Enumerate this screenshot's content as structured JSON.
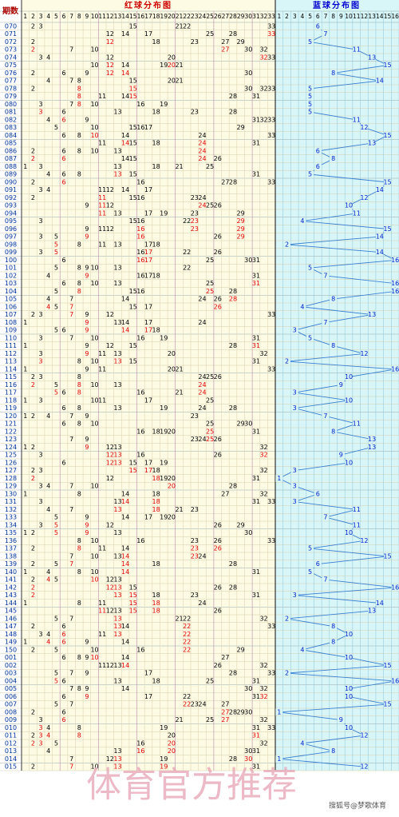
{
  "header": {
    "issue_label": "期数",
    "red_title": "红球分布图",
    "blue_title": "蓝球分布图",
    "red_columns": [
      1,
      2,
      3,
      4,
      5,
      6,
      7,
      8,
      9,
      10,
      11,
      12,
      13,
      14,
      15,
      16,
      17,
      18,
      19,
      20,
      21,
      22,
      23,
      24,
      25,
      26,
      27,
      28,
      29,
      30,
      31,
      32,
      33
    ],
    "blue_columns": [
      1,
      2,
      3,
      4,
      5,
      6,
      7,
      8,
      9,
      10,
      11,
      12,
      13,
      14,
      15,
      16
    ]
  },
  "rows": [
    {
      "issue": "070",
      "red": [
        2,
        3,
        15,
        21,
        22,
        33
      ],
      "blue": 6
    },
    {
      "issue": "071",
      "red": [
        12,
        14,
        17,
        25,
        28,
        33
      ],
      "blue": 7
    },
    {
      "issue": "072",
      "red": [
        2,
        12,
        18,
        23,
        27,
        29
      ],
      "blue": 5
    },
    {
      "issue": "073",
      "red": [
        2,
        7,
        10,
        27,
        30,
        32
      ],
      "blue": 11
    },
    {
      "issue": "074",
      "red": [
        3,
        4,
        12,
        20,
        32,
        33
      ],
      "blue": 13
    },
    {
      "issue": "075",
      "red": [
        10,
        12,
        14,
        19,
        20,
        21
      ],
      "blue": 15
    },
    {
      "issue": "076",
      "red": [
        2,
        6,
        9,
        12,
        14,
        30
      ],
      "blue": 8
    },
    {
      "issue": "077",
      "red": [
        4,
        7,
        8,
        15,
        20,
        21
      ],
      "blue": 14
    },
    {
      "issue": "078",
      "red": [
        2,
        8,
        15,
        30,
        32,
        33
      ],
      "blue": 5
    },
    {
      "issue": "079",
      "red": [
        8,
        11,
        14,
        15,
        28,
        31
      ],
      "blue": 5
    },
    {
      "issue": "080",
      "red": [
        3,
        7,
        8,
        10,
        16,
        19
      ],
      "blue": 5
    },
    {
      "issue": "081",
      "red": [
        3,
        6,
        13,
        18,
        23,
        28
      ],
      "blue": 5
    },
    {
      "issue": "082",
      "red": [
        4,
        6,
        9,
        31,
        32,
        33
      ],
      "blue": 11
    },
    {
      "issue": "083",
      "red": [
        5,
        10,
        15,
        16,
        17,
        29
      ],
      "blue": 12
    },
    {
      "issue": "084",
      "red": [
        6,
        8,
        10,
        14,
        24,
        33
      ],
      "blue": 15
    },
    {
      "issue": "085",
      "red": [
        11,
        14,
        15,
        18,
        24,
        31
      ],
      "blue": 13
    },
    {
      "issue": "086",
      "red": [
        2,
        6,
        8,
        10,
        13,
        24
      ],
      "blue": 6
    },
    {
      "issue": "087",
      "red": [
        2,
        6,
        14,
        15,
        24,
        26
      ],
      "blue": 8
    },
    {
      "issue": "088",
      "red": [
        1,
        3,
        13,
        18,
        21,
        25
      ],
      "blue": 6
    },
    {
      "issue": "089",
      "red": [
        4,
        6,
        8,
        13,
        15,
        31
      ],
      "blue": 5
    },
    {
      "issue": "090",
      "red": [
        2,
        6,
        16,
        27,
        28,
        33
      ],
      "blue": 15
    },
    {
      "issue": "091",
      "red": [
        3,
        4,
        11,
        12,
        14,
        17
      ],
      "blue": 14
    },
    {
      "issue": "092",
      "red": [
        2,
        11,
        15,
        16,
        23,
        24
      ],
      "blue": 12
    },
    {
      "issue": "093",
      "red": [
        9,
        11,
        12,
        24,
        25,
        26
      ],
      "blue": 10
    },
    {
      "issue": "094",
      "red": [
        11,
        13,
        17,
        19,
        23,
        29
      ],
      "blue": 11
    },
    {
      "issue": "095",
      "red": [
        3,
        15,
        16,
        22,
        23,
        29
      ],
      "blue": 4
    },
    {
      "issue": "096",
      "red": [
        9,
        11,
        12,
        16,
        23,
        29
      ],
      "blue": 15
    },
    {
      "issue": "097",
      "red": [
        3,
        5,
        9,
        16,
        26,
        29
      ],
      "blue": 14
    },
    {
      "issue": "098",
      "red": [
        5,
        8,
        11,
        13,
        17,
        18
      ],
      "blue": 2
    },
    {
      "issue": "099",
      "red": [
        3,
        5,
        16,
        17,
        22,
        26
      ],
      "blue": 14
    },
    {
      "issue": "100",
      "red": [
        6,
        16,
        17,
        25,
        30,
        31
      ],
      "blue": 16
    },
    {
      "issue": "101",
      "red": [
        5,
        8,
        9,
        10,
        13,
        22
      ],
      "blue": 5
    },
    {
      "issue": "102",
      "red": [
        4,
        9,
        16,
        17,
        18,
        31
      ],
      "blue": 7
    },
    {
      "issue": "103",
      "red": [
        6,
        8,
        10,
        13,
        25,
        31
      ],
      "blue": 16
    },
    {
      "issue": "104",
      "red": [
        5,
        8,
        15,
        16,
        25,
        28
      ],
      "blue": 16
    },
    {
      "issue": "105",
      "red": [
        4,
        7,
        14,
        24,
        26,
        28
      ],
      "blue": 8
    },
    {
      "issue": "106",
      "red": [
        4,
        5,
        7,
        15,
        17,
        26
      ],
      "blue": 4
    },
    {
      "issue": "107",
      "red": [
        2,
        3,
        7,
        9,
        12,
        33
      ],
      "blue": 13
    },
    {
      "issue": "108",
      "red": [
        1,
        9,
        13,
        14,
        17,
        24
      ],
      "blue": 7
    },
    {
      "issue": "109",
      "red": [
        5,
        6,
        9,
        14,
        17,
        18
      ],
      "blue": 3
    },
    {
      "issue": "110",
      "red": [
        3,
        7,
        10,
        16,
        19,
        31
      ],
      "blue": 5
    },
    {
      "issue": "111",
      "red": [
        1,
        9,
        12,
        15,
        28,
        31
      ],
      "blue": 8
    },
    {
      "issue": "112",
      "red": [
        3,
        9,
        11,
        13,
        20,
        32
      ],
      "blue": 12
    },
    {
      "issue": "113",
      "red": [
        3,
        8,
        10,
        13,
        15,
        31
      ],
      "blue": 2
    },
    {
      "issue": "114",
      "red": [
        1,
        9,
        11,
        20,
        21,
        33
      ],
      "blue": 16
    },
    {
      "issue": "115",
      "red": [
        2,
        3,
        8,
        24,
        25,
        26
      ],
      "blue": 10
    },
    {
      "issue": "116",
      "red": [
        2,
        5,
        8,
        10,
        13,
        24
      ],
      "blue": 9
    },
    {
      "issue": "117",
      "red": [
        5,
        6,
        8,
        16,
        21,
        24
      ],
      "blue": 3
    },
    {
      "issue": "118",
      "red": [
        1,
        3,
        10,
        11,
        17,
        25
      ],
      "blue": 10
    },
    {
      "issue": "119",
      "red": [
        6,
        8,
        13,
        19,
        24,
        28
      ],
      "blue": 3
    },
    {
      "issue": "120",
      "red": [
        1,
        2,
        4,
        7,
        9,
        23
      ],
      "blue": 7
    },
    {
      "issue": "121",
      "red": [
        6,
        8,
        10,
        25,
        29,
        30
      ],
      "blue": 11
    },
    {
      "issue": "122",
      "red": [
        16,
        18,
        19,
        20,
        25,
        31
      ],
      "blue": 8
    },
    {
      "issue": "123",
      "red": [
        7,
        9,
        23,
        24,
        25,
        26
      ],
      "blue": 13
    },
    {
      "issue": "124",
      "red": [
        1,
        2,
        9,
        12,
        13,
        32
      ],
      "blue": 13
    },
    {
      "issue": "125",
      "red": [
        3,
        12,
        13,
        16,
        26,
        32
      ],
      "blue": 9
    },
    {
      "issue": "126",
      "red": [
        6,
        12,
        13,
        15,
        17,
        19
      ],
      "blue": 10
    },
    {
      "issue": "127",
      "red": [
        2,
        3,
        15,
        17,
        18,
        32
      ],
      "blue": 3
    },
    {
      "issue": "128",
      "red": [
        2,
        12,
        18,
        19,
        20,
        31
      ],
      "blue": 1
    },
    {
      "issue": "129",
      "red": [
        3,
        4,
        7,
        10,
        20,
        28
      ],
      "blue": 3
    },
    {
      "issue": "130",
      "red": [
        1,
        8,
        14,
        18,
        27,
        32
      ],
      "blue": 6
    },
    {
      "issue": "131",
      "red": [
        3,
        13,
        14,
        18,
        31,
        33
      ],
      "blue": 3
    },
    {
      "issue": "132",
      "red": [
        4,
        7,
        13,
        18,
        21,
        23
      ],
      "blue": 11
    },
    {
      "issue": "133",
      "red": [
        5,
        9,
        14,
        17,
        19,
        20
      ],
      "blue": 7
    },
    {
      "issue": "134",
      "red": [
        3,
        5,
        9,
        12,
        26,
        29
      ],
      "blue": 11
    },
    {
      "issue": "135",
      "red": [
        1,
        2,
        5,
        9,
        13,
        30
      ],
      "blue": 10
    },
    {
      "issue": "136",
      "red": [
        8,
        10,
        16,
        23,
        26,
        33
      ],
      "blue": 12
    },
    {
      "issue": "137",
      "red": [
        2,
        8,
        11,
        14,
        23,
        26
      ],
      "blue": 5
    },
    {
      "issue": "138",
      "red": [
        7,
        10,
        13,
        14,
        23,
        24
      ],
      "blue": 15
    },
    {
      "issue": "139",
      "red": [
        2,
        5,
        7,
        14,
        18,
        28
      ],
      "blue": 6
    },
    {
      "issue": "140",
      "red": [
        1,
        4,
        8,
        10,
        14,
        31
      ],
      "blue": 5
    },
    {
      "issue": "141",
      "red": [
        2,
        4,
        5,
        10,
        12,
        13
      ],
      "blue": 7
    },
    {
      "issue": "142",
      "red": [
        2,
        12,
        13,
        15,
        26,
        28
      ],
      "blue": 16
    },
    {
      "issue": "143",
      "red": [
        2,
        13,
        15,
        18,
        23,
        31
      ],
      "blue": 3
    },
    {
      "issue": "144",
      "red": [
        1,
        8,
        11,
        15,
        18,
        24
      ],
      "blue": 14
    },
    {
      "issue": "145",
      "red": [
        11,
        12,
        13,
        15,
        18,
        26
      ],
      "blue": 13
    },
    {
      "issue": "146",
      "red": [
        5,
        7,
        13,
        21,
        22,
        32
      ],
      "blue": 2
    },
    {
      "issue": "147",
      "red": [
        2,
        6,
        13,
        14,
        22,
        33
      ],
      "blue": 8
    },
    {
      "issue": "148",
      "red": [
        3,
        4,
        6,
        11,
        13,
        22
      ],
      "blue": 10
    },
    {
      "issue": "149",
      "red": [
        1,
        4,
        6,
        9,
        14,
        22
      ],
      "blue": 8
    },
    {
      "issue": "150",
      "red": [
        2,
        5,
        10,
        16,
        22,
        29
      ],
      "blue": 4
    },
    {
      "issue": "001",
      "red": [
        6,
        8,
        9,
        10,
        14,
        27
      ],
      "blue": 10
    },
    {
      "issue": "002",
      "red": [
        11,
        12,
        13,
        14,
        26,
        32
      ],
      "blue": 15
    },
    {
      "issue": "003",
      "red": [
        5,
        7,
        9,
        17,
        28,
        33
      ],
      "blue": 2
    },
    {
      "issue": "004",
      "red": [
        5,
        6,
        13,
        18,
        25,
        31
      ],
      "blue": 16
    },
    {
      "issue": "005",
      "red": [
        7,
        8,
        9,
        14,
        30,
        32
      ],
      "blue": 10
    },
    {
      "issue": "006",
      "red": [
        6,
        9,
        17,
        22,
        31,
        32
      ],
      "blue": 10
    },
    {
      "issue": "007",
      "red": [
        5,
        7,
        22,
        23,
        24,
        27
      ],
      "blue": 15
    },
    {
      "issue": "008",
      "red": [
        2,
        6,
        27,
        28,
        29,
        30
      ],
      "blue": 1
    },
    {
      "issue": "009",
      "red": [
        3,
        6,
        21,
        25,
        27,
        32
      ],
      "blue": 9
    },
    {
      "issue": "010",
      "red": [
        3,
        4,
        8,
        19,
        31,
        33
      ],
      "blue": 10
    },
    {
      "issue": "011",
      "red": [
        2,
        3,
        4,
        8,
        20,
        31
      ],
      "blue": 12
    },
    {
      "issue": "012",
      "red": [
        2,
        3,
        5,
        16,
        20,
        32
      ],
      "blue": 4
    },
    {
      "issue": "013",
      "red": [
        4,
        13,
        16,
        20,
        30,
        31
      ],
      "blue": 8
    },
    {
      "issue": "014",
      "red": [
        7,
        12,
        13,
        19,
        28,
        30
      ],
      "blue": 1
    },
    {
      "issue": "015",
      "red": [
        2,
        7,
        10,
        13,
        19,
        31
      ],
      "blue": 12
    }
  ],
  "watermark": "体育官方推荐",
  "footer": "搜狐号@梦歌体育"
}
